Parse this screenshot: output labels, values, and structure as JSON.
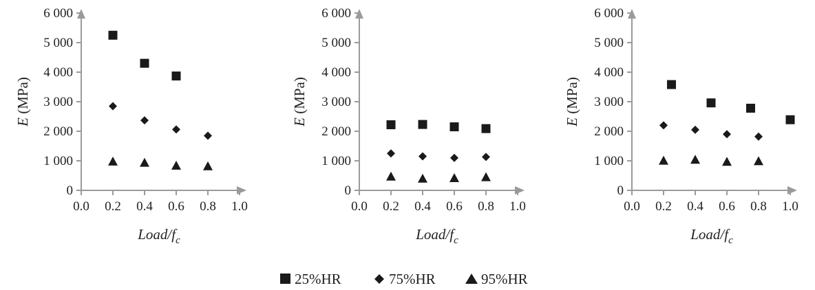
{
  "chart_data": [
    {
      "type": "scatter",
      "xlabel": "Load/f_c",
      "xlabel_main": "Load/f",
      "xlabel_sub": "c",
      "ylabel_var": "E",
      "ylabel_unit": " (MPa)",
      "xlim": [
        0.0,
        1.0
      ],
      "ylim": [
        0,
        6000
      ],
      "xticks": [
        "0.0",
        "0.2",
        "0.4",
        "0.6",
        "0.8",
        "1.0"
      ],
      "yticks": [
        "0",
        "1 000",
        "2 000",
        "3 000",
        "4 000",
        "5 000",
        "6 000"
      ],
      "series": [
        {
          "name": "25%HR",
          "x": [
            0.2,
            0.4,
            0.6
          ],
          "y": [
            5250,
            4300,
            3870
          ]
        },
        {
          "name": "75%HR",
          "x": [
            0.2,
            0.4,
            0.6,
            0.8
          ],
          "y": [
            2850,
            2370,
            2060,
            1850
          ]
        },
        {
          "name": "95%HR",
          "x": [
            0.2,
            0.4,
            0.6,
            0.8
          ],
          "y": [
            980,
            940,
            840,
            820
          ]
        }
      ]
    },
    {
      "type": "scatter",
      "xlabel": "Load/f_c",
      "xlabel_main": "Load/f",
      "xlabel_sub": "c",
      "ylabel_var": "E",
      "ylabel_unit": " (MPa)",
      "xlim": [
        0.0,
        1.0
      ],
      "ylim": [
        0,
        6000
      ],
      "xticks": [
        "0.0",
        "0.2",
        "0.4",
        "0.6",
        "0.8",
        "1.0"
      ],
      "yticks": [
        "0",
        "1 000",
        "2 000",
        "3 000",
        "4 000",
        "5 000",
        "6 000"
      ],
      "series": [
        {
          "name": "25%HR",
          "x": [
            0.2,
            0.4,
            0.6,
            0.8
          ],
          "y": [
            2220,
            2230,
            2150,
            2090
          ]
        },
        {
          "name": "75%HR",
          "x": [
            0.2,
            0.4,
            0.6,
            0.8
          ],
          "y": [
            1250,
            1150,
            1100,
            1130
          ]
        },
        {
          "name": "95%HR",
          "x": [
            0.2,
            0.4,
            0.6,
            0.8
          ],
          "y": [
            470,
            400,
            420,
            450
          ]
        }
      ]
    },
    {
      "type": "scatter",
      "xlabel": "Load/f_c",
      "xlabel_main": "Load/f",
      "xlabel_sub": "c",
      "ylabel_var": "E",
      "ylabel_unit": " (MPa)",
      "xlim": [
        0.0,
        1.0
      ],
      "ylim": [
        0,
        6000
      ],
      "xticks": [
        "0.0",
        "0.2",
        "0.4",
        "0.6",
        "0.8",
        "1.0"
      ],
      "yticks": [
        "0",
        "1 000",
        "2 000",
        "3 000",
        "4 000",
        "5 000",
        "6 000"
      ],
      "series": [
        {
          "name": "25%HR",
          "x": [
            0.25,
            0.5,
            0.75,
            1.0
          ],
          "y": [
            3580,
            2960,
            2780,
            2390
          ]
        },
        {
          "name": "75%HR",
          "x": [
            0.2,
            0.4,
            0.6,
            0.8
          ],
          "y": [
            2200,
            2050,
            1900,
            1820
          ]
        },
        {
          "name": "95%HR",
          "x": [
            0.2,
            0.4,
            0.6,
            0.8
          ],
          "y": [
            1010,
            1040,
            970,
            990
          ]
        }
      ]
    }
  ],
  "legend": {
    "items": [
      {
        "label": "25%HR",
        "marker": "square"
      },
      {
        "label": "75%HR",
        "marker": "diamond"
      },
      {
        "label": "95%HR",
        "marker": "triangle"
      }
    ]
  },
  "colors": {
    "axis": "#9a9a9a",
    "marker": "#1a1a1a",
    "text": "#222222"
  }
}
